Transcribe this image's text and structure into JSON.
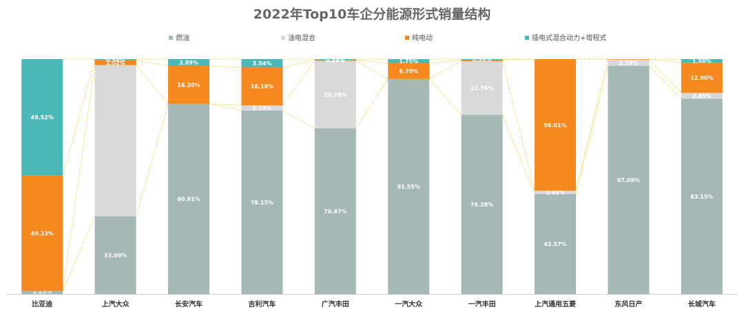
{
  "chart_data": {
    "type": "bar",
    "stacked": true,
    "percent_stacked": true,
    "title": "2022年Top10车企分能源形式销量结构",
    "xlabel": "",
    "ylabel": "",
    "ylim": [
      0,
      100
    ],
    "grid": false,
    "legend_position": "top",
    "connector_lines": true,
    "categories": [
      "比亚迪",
      "上汽大众",
      "长安汽车",
      "吉利汽车",
      "广汽丰田",
      "一汽大众",
      "一汽丰田",
      "上汽通用五菱",
      "东风日产",
      "长城汽车"
    ],
    "series": [
      {
        "name": "燃油",
        "color": "#a5b8b5",
        "label_color": "#ffffff",
        "values": [
          1.25,
          33.09,
          80.91,
          78.15,
          70.47,
          91.55,
          76.28,
          42.57,
          97.09,
          83.15
        ],
        "labels": [
          "1.25%",
          "33.09%",
          "80.91%",
          "78.15%",
          "70.47%",
          "91.55%",
          "76.28%",
          "42.57%",
          "97.09%",
          "83.15%"
        ]
      },
      {
        "name": "油电混合",
        "color": "#d9d9d9",
        "label_color": "#ffffff",
        "values": [
          0,
          64.35,
          0,
          2.14,
          28.78,
          0,
          22.76,
          1.42,
          2.73,
          2.45
        ],
        "labels": [
          "",
          "",
          "",
          "2.14%",
          "28.78%",
          "",
          "22.76%",
          "1.42%",
          "2.73%",
          "2.45%"
        ]
      },
      {
        "name": "纯电动",
        "color": "#f5891f",
        "label_color": "#ffffff",
        "values": [
          49.23,
          2.02,
          16.2,
          16.18,
          0.37,
          6.7,
          0.63,
          56.01,
          0.18,
          12.9
        ],
        "labels": [
          "49.23%",
          "2.02%",
          "16.20%",
          "16.18%",
          "0.37%",
          "6.70%",
          "",
          "56.01%",
          "",
          "12.90%"
        ]
      },
      {
        "name": "插电式混合动力+增程式",
        "color": "#4bb8b8",
        "label_color": "#ffffff",
        "values": [
          49.52,
          0.54,
          2.89,
          3.54,
          0.38,
          1.75,
          0.33,
          0,
          0,
          1.5
        ],
        "labels": [
          "49.52%",
          "0.54%",
          "2.89%",
          "3.54%",
          "0.38%",
          "1.75%",
          "0.33%",
          "",
          "",
          "1.50%"
        ]
      }
    ]
  }
}
